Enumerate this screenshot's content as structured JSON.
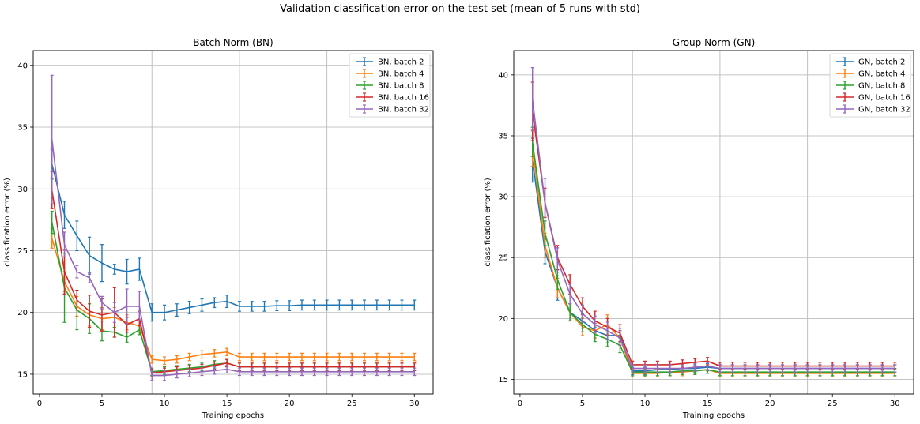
{
  "figure": {
    "title": "Validation classification error on the test set (mean of 5 runs with std)"
  },
  "colors": {
    "batch_2": "#1f77b4",
    "batch_4": "#ff7f0e",
    "batch_8": "#2ca02c",
    "batch_16": "#d62728",
    "batch_32": "#9467bd",
    "grid": "#b0b0b0",
    "vline": "#c0c0c0"
  },
  "chart_data": [
    {
      "type": "line",
      "title": "Batch Norm (BN)",
      "xlabel": "Training epochs",
      "ylabel": "classification error (%)",
      "xlim": [
        -0.5,
        31.5
      ],
      "ylim": [
        13.4,
        41.2
      ],
      "xticks": [
        0,
        5,
        10,
        15,
        20,
        25,
        30
      ],
      "yticks": [
        15,
        20,
        25,
        30,
        35,
        40
      ],
      "vlines": [
        9,
        16,
        23
      ],
      "grid": true,
      "legend": "top-right",
      "error_bars": true,
      "x": [
        1,
        2,
        3,
        4,
        5,
        6,
        7,
        8,
        9,
        10,
        11,
        12,
        13,
        14,
        15,
        16,
        17,
        18,
        19,
        20,
        21,
        22,
        23,
        24,
        25,
        26,
        27,
        28,
        29,
        30
      ],
      "series": [
        {
          "name": "BN, batch 2",
          "color_key": "batch_2",
          "values": [
            32.0,
            27.9,
            26.2,
            24.6,
            24.0,
            23.5,
            23.3,
            23.5,
            20.0,
            20.0,
            20.2,
            20.4,
            20.6,
            20.8,
            20.9,
            20.5,
            20.5,
            20.5,
            20.55,
            20.55,
            20.6,
            20.6,
            20.6,
            20.6,
            20.6,
            20.6,
            20.6,
            20.6,
            20.6,
            20.6
          ],
          "err": [
            1.2,
            1.1,
            1.2,
            1.5,
            1.5,
            0.4,
            1.0,
            0.9,
            0.7,
            0.6,
            0.5,
            0.5,
            0.5,
            0.4,
            0.5,
            0.4,
            0.4,
            0.4,
            0.4,
            0.4,
            0.4,
            0.4,
            0.4,
            0.4,
            0.4,
            0.4,
            0.4,
            0.4,
            0.4,
            0.4
          ]
        },
        {
          "name": "BN, batch 4",
          "color_key": "batch_4",
          "values": [
            26.0,
            22.5,
            20.5,
            19.8,
            19.5,
            19.6,
            19.2,
            18.9,
            16.2,
            16.1,
            16.2,
            16.4,
            16.6,
            16.7,
            16.8,
            16.4,
            16.4,
            16.4,
            16.4,
            16.4,
            16.4,
            16.4,
            16.4,
            16.4,
            16.4,
            16.4,
            16.4,
            16.4,
            16.4,
            16.4
          ],
          "err": [
            0.8,
            0.8,
            0.8,
            0.9,
            0.9,
            0.8,
            0.6,
            0.5,
            0.3,
            0.3,
            0.3,
            0.3,
            0.3,
            0.3,
            0.3,
            0.3,
            0.3,
            0.3,
            0.3,
            0.3,
            0.3,
            0.3,
            0.3,
            0.3,
            0.3,
            0.3,
            0.3,
            0.3,
            0.3,
            0.3
          ]
        },
        {
          "name": "BN, batch 8",
          "color_key": "batch_8",
          "values": [
            27.3,
            22.0,
            20.2,
            19.5,
            18.5,
            18.4,
            18.0,
            18.6,
            15.2,
            15.3,
            15.4,
            15.5,
            15.6,
            15.8,
            15.9,
            15.6,
            15.6,
            15.6,
            15.6,
            15.6,
            15.6,
            15.6,
            15.6,
            15.6,
            15.6,
            15.6,
            15.6,
            15.6,
            15.6,
            15.6
          ],
          "err": [
            0.9,
            2.8,
            1.6,
            1.2,
            0.8,
            0.4,
            0.4,
            0.4,
            0.3,
            0.3,
            0.3,
            0.3,
            0.3,
            0.3,
            0.3,
            0.3,
            0.3,
            0.3,
            0.3,
            0.3,
            0.3,
            0.3,
            0.3,
            0.3,
            0.3,
            0.3,
            0.3,
            0.3,
            0.3,
            0.3
          ]
        },
        {
          "name": "BN, batch 16",
          "color_key": "batch_16",
          "values": [
            29.9,
            23.3,
            21.0,
            20.1,
            19.8,
            20.0,
            19.0,
            19.5,
            15.1,
            15.2,
            15.3,
            15.4,
            15.5,
            15.7,
            15.9,
            15.6,
            15.6,
            15.6,
            15.6,
            15.6,
            15.6,
            15.6,
            15.6,
            15.6,
            15.6,
            15.6,
            15.6,
            15.6,
            15.6,
            15.6
          ],
          "err": [
            1.5,
            1.8,
            0.8,
            1.3,
            1.3,
            2.0,
            0.6,
            0.6,
            0.3,
            0.3,
            0.3,
            0.3,
            0.3,
            0.3,
            0.3,
            0.3,
            0.3,
            0.3,
            0.3,
            0.3,
            0.3,
            0.3,
            0.3,
            0.3,
            0.3,
            0.3,
            0.3,
            0.3,
            0.3,
            0.3
          ]
        },
        {
          "name": "BN, batch 32",
          "color_key": "batch_32",
          "values": [
            34.0,
            25.5,
            23.3,
            22.8,
            20.8,
            20.0,
            20.5,
            20.5,
            14.9,
            14.9,
            15.0,
            15.1,
            15.2,
            15.3,
            15.4,
            15.2,
            15.2,
            15.2,
            15.2,
            15.2,
            15.2,
            15.2,
            15.2,
            15.2,
            15.2,
            15.2,
            15.2,
            15.2,
            15.2,
            15.2
          ],
          "err": [
            5.2,
            1.0,
            0.5,
            0.4,
            0.5,
            0.8,
            1.4,
            1.2,
            0.4,
            0.4,
            0.3,
            0.3,
            0.3,
            0.3,
            0.3,
            0.3,
            0.3,
            0.3,
            0.3,
            0.3,
            0.3,
            0.3,
            0.3,
            0.3,
            0.3,
            0.3,
            0.3,
            0.3,
            0.3,
            0.3
          ]
        }
      ]
    },
    {
      "type": "line",
      "title": "Group Norm (GN)",
      "xlabel": "Training epochs",
      "ylabel": "classification error (%)",
      "xlim": [
        -0.5,
        31.5
      ],
      "ylim": [
        13.8,
        42.0
      ],
      "xticks": [
        0,
        5,
        10,
        15,
        20,
        25,
        30
      ],
      "yticks": [
        15,
        20,
        25,
        30,
        35,
        40
      ],
      "vlines": [
        9,
        16,
        23
      ],
      "grid": true,
      "legend": "top-right",
      "error_bars": true,
      "x": [
        1,
        2,
        3,
        4,
        5,
        6,
        7,
        8,
        9,
        10,
        11,
        12,
        13,
        14,
        15,
        16,
        17,
        18,
        19,
        20,
        21,
        22,
        23,
        24,
        25,
        26,
        27,
        28,
        29,
        30
      ],
      "series": [
        {
          "name": "GN, batch 2",
          "color_key": "batch_2",
          "values": [
            33.0,
            25.5,
            22.5,
            20.5,
            19.8,
            19.0,
            18.6,
            18.6,
            15.7,
            15.7,
            15.8,
            15.8,
            15.9,
            15.9,
            16.0,
            15.9,
            15.9,
            15.9,
            15.9,
            15.9,
            15.9,
            15.9,
            15.9,
            15.9,
            15.9,
            15.9,
            15.9,
            15.9,
            15.9,
            15.9
          ],
          "err": [
            1.8,
            1.0,
            1.0,
            0.7,
            0.6,
            0.6,
            0.6,
            0.6,
            0.3,
            0.3,
            0.3,
            0.3,
            0.3,
            0.3,
            0.3,
            0.3,
            0.3,
            0.3,
            0.3,
            0.3,
            0.3,
            0.3,
            0.3,
            0.3,
            0.3,
            0.3,
            0.3,
            0.3,
            0.3,
            0.3
          ]
        },
        {
          "name": "GN, batch 4",
          "color_key": "batch_4",
          "values": [
            34.0,
            26.0,
            22.5,
            20.5,
            19.3,
            19.0,
            19.5,
            18.4,
            15.5,
            15.5,
            15.5,
            15.6,
            15.6,
            15.7,
            15.8,
            15.5,
            15.5,
            15.5,
            15.5,
            15.5,
            15.5,
            15.5,
            15.5,
            15.5,
            15.5,
            15.5,
            15.5,
            15.5,
            15.5,
            15.5
          ],
          "err": [
            1.5,
            1.0,
            0.8,
            0.7,
            0.7,
            0.6,
            0.8,
            0.6,
            0.3,
            0.3,
            0.3,
            0.3,
            0.3,
            0.3,
            0.3,
            0.3,
            0.3,
            0.3,
            0.3,
            0.3,
            0.3,
            0.3,
            0.3,
            0.3,
            0.3,
            0.3,
            0.3,
            0.3,
            0.3,
            0.3
          ]
        },
        {
          "name": "GN, batch 8",
          "color_key": "batch_8",
          "values": [
            34.5,
            27.0,
            23.2,
            20.5,
            19.5,
            18.7,
            18.3,
            17.8,
            15.6,
            15.6,
            15.6,
            15.6,
            15.7,
            15.7,
            15.8,
            15.6,
            15.6,
            15.6,
            15.6,
            15.6,
            15.6,
            15.6,
            15.6,
            15.6,
            15.6,
            15.6,
            15.6,
            15.6,
            15.6,
            15.6
          ],
          "err": [
            1.2,
            1.0,
            0.8,
            0.7,
            0.6,
            0.6,
            0.6,
            0.6,
            0.3,
            0.3,
            0.3,
            0.3,
            0.3,
            0.3,
            0.3,
            0.3,
            0.3,
            0.3,
            0.3,
            0.3,
            0.3,
            0.3,
            0.3,
            0.3,
            0.3,
            0.3,
            0.3,
            0.3,
            0.3,
            0.3
          ]
        },
        {
          "name": "GN, batch 16",
          "color_key": "batch_16",
          "values": [
            37.0,
            29.5,
            25.0,
            22.8,
            21.0,
            19.8,
            19.3,
            18.8,
            16.2,
            16.2,
            16.2,
            16.2,
            16.3,
            16.4,
            16.5,
            16.1,
            16.1,
            16.1,
            16.1,
            16.1,
            16.1,
            16.1,
            16.1,
            16.1,
            16.1,
            16.1,
            16.1,
            16.1,
            16.1,
            16.1
          ],
          "err": [
            2.4,
            1.2,
            1.0,
            0.8,
            0.7,
            0.8,
            0.7,
            0.7,
            0.3,
            0.3,
            0.3,
            0.3,
            0.3,
            0.3,
            0.3,
            0.3,
            0.3,
            0.3,
            0.3,
            0.3,
            0.3,
            0.3,
            0.3,
            0.3,
            0.3,
            0.3,
            0.3,
            0.3,
            0.3,
            0.3
          ]
        },
        {
          "name": "GN, batch 32",
          "color_key": "batch_32",
          "values": [
            38.0,
            29.5,
            24.8,
            22.0,
            20.4,
            19.5,
            19.0,
            18.4,
            15.9,
            15.9,
            15.9,
            15.9,
            15.9,
            16.0,
            16.1,
            15.9,
            15.9,
            15.9,
            15.9,
            15.9,
            15.9,
            15.9,
            15.9,
            15.9,
            15.9,
            15.9,
            15.9,
            15.9,
            15.9,
            15.9
          ],
          "err": [
            2.6,
            2.0,
            1.0,
            0.8,
            0.7,
            0.7,
            0.7,
            0.6,
            0.3,
            0.3,
            0.3,
            0.3,
            0.3,
            0.3,
            0.3,
            0.3,
            0.3,
            0.3,
            0.3,
            0.3,
            0.3,
            0.3,
            0.3,
            0.3,
            0.3,
            0.3,
            0.3,
            0.3,
            0.3,
            0.3
          ]
        }
      ]
    }
  ]
}
